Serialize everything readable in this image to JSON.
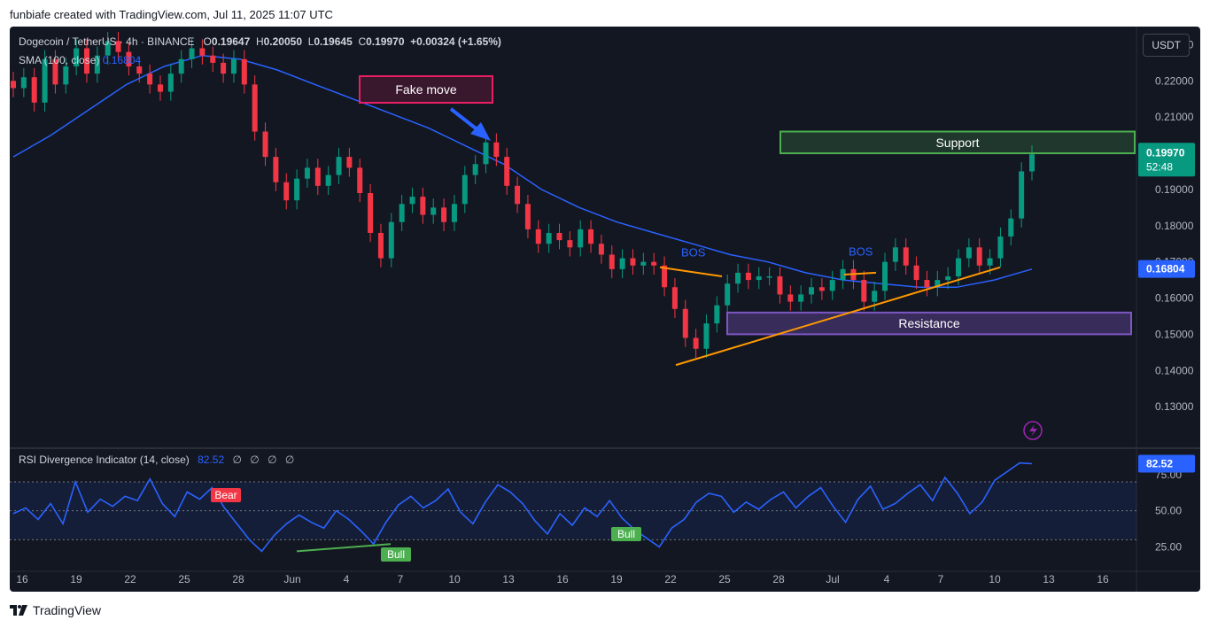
{
  "header": {
    "created_line": "funbiafe created with TradingView.com, Jul 11, 2025 11:07 UTC"
  },
  "symbol": {
    "name": "Dogecoin / TetherUS · 4h · BINANCE",
    "o_label": "O",
    "o_value": "0.19647",
    "h_label": "H",
    "h_value": "0.20050",
    "l_label": "L",
    "l_value": "0.19645",
    "c_label": "C",
    "c_value": "0.19970",
    "change": "+0.00324 (+1.65%)"
  },
  "sma": {
    "label": "SMA (100, close)",
    "value": "0.16804"
  },
  "currency_button": "USDT",
  "price_tags": {
    "last": "0.19970",
    "countdown": "52:48",
    "sma": "0.16804"
  },
  "rsi": {
    "label": "RSI Divergence Indicator (14, close)",
    "value": "82.52",
    "extras": [
      "∅",
      "∅",
      "∅",
      "∅"
    ],
    "tag": "82.52"
  },
  "annotations": {
    "fake_move": "Fake move",
    "support": "Support",
    "resistance": "Resistance",
    "bos1": "BOS",
    "bos2": "BOS"
  },
  "divergence_labels": {
    "bear": "Bear",
    "bull1": "Bull",
    "bull2": "Bull"
  },
  "brand": "TradingView",
  "colors": {
    "up": "#089981",
    "down": "#f23645",
    "sma": "#2962ff",
    "rsi": "#2962ff",
    "support": "#4caf50",
    "resistance": "#7e57c2",
    "trendline": "#ff9800",
    "fake_move": "#e91e63",
    "bg": "#131722"
  },
  "chart_data": [
    {
      "type": "candlestick",
      "title": "Dogecoin / TetherUS · 4h · BINANCE",
      "y_ticks": [
        0.13,
        0.14,
        0.15,
        0.16,
        0.17,
        0.18,
        0.19,
        0.2,
        0.21,
        0.22,
        0.23
      ],
      "ylim": [
        0.12,
        0.235
      ],
      "x_ticks": [
        "16",
        "19",
        "22",
        "25",
        "28",
        "Jun",
        "4",
        "7",
        "10",
        "13",
        "16",
        "19",
        "22",
        "25",
        "28",
        "Jul",
        "4",
        "7",
        "10",
        "13",
        "16"
      ],
      "close_path": [
        [
          0.218,
          0.221,
          0.214,
          0.226,
          0.219,
          0.224,
          0.229,
          0.222,
          0.227,
          0.231,
          0.228,
          0.224
        ],
        [
          0.222,
          0.219,
          0.217,
          0.222,
          0.226,
          0.229,
          0.227,
          0.225,
          0.222,
          0.226,
          0.219,
          0.206
        ],
        [
          0.199,
          0.192,
          0.187,
          0.193,
          0.196,
          0.191,
          0.194,
          0.199,
          0.196,
          0.189,
          0.178,
          0.171
        ],
        [
          0.181,
          0.186,
          0.188,
          0.183,
          0.185,
          0.181,
          0.186,
          0.194,
          0.197,
          0.203,
          0.199,
          0.191
        ],
        [
          0.186,
          0.179,
          0.175,
          0.178,
          0.176,
          0.174,
          0.179,
          0.175,
          0.172,
          0.168,
          0.171,
          0.169
        ],
        [
          0.17,
          0.169,
          0.163,
          0.157,
          0.149,
          0.146,
          0.153,
          0.158,
          0.164,
          0.167,
          0.165,
          0.166
        ],
        [
          0.166,
          0.161,
          0.159,
          0.161,
          0.163,
          0.162,
          0.165,
          0.168,
          0.165,
          0.159,
          0.162,
          0.17
        ],
        [
          0.174,
          0.169,
          0.165,
          0.163,
          0.165,
          0.166,
          0.171,
          0.174,
          0.169,
          0.171,
          0.177,
          0.182
        ],
        [
          0.195,
          0.1997
        ]
      ],
      "sma_100": [
        0.199,
        0.205,
        0.212,
        0.219,
        0.224,
        0.227,
        0.226,
        0.223,
        0.219,
        0.215,
        0.211,
        0.207,
        0.202,
        0.197,
        0.19,
        0.185,
        0.181,
        0.178,
        0.175,
        0.172,
        0.17,
        0.167,
        0.165,
        0.164,
        0.163,
        0.163,
        0.165,
        0.168
      ],
      "series": [
        {
          "name": "SMA (100, close)",
          "last": 0.16804
        }
      ],
      "levels": {
        "support_zone": [
          0.2,
          0.206
        ],
        "resistance_zone": [
          0.15,
          0.156
        ]
      },
      "last_price": 0.1997
    },
    {
      "type": "line",
      "title": "RSI Divergence Indicator (14, close)",
      "y_ticks": [
        25,
        50,
        75
      ],
      "ylim": [
        10,
        92
      ],
      "band": [
        30,
        70
      ],
      "values": [
        48,
        52,
        44,
        55,
        41,
        70,
        49,
        58,
        53,
        60,
        57,
        72,
        55,
        46,
        63,
        58,
        66,
        52,
        41,
        30,
        22,
        33,
        41,
        47,
        42,
        38,
        50,
        44,
        36,
        27,
        42,
        54,
        60,
        52,
        57,
        65,
        49,
        41,
        56,
        68,
        63,
        55,
        43,
        34,
        48,
        40,
        52,
        46,
        57,
        45,
        37,
        31,
        25,
        38,
        44,
        56,
        62,
        60,
        49,
        56,
        51,
        58,
        63,
        52,
        60,
        66,
        53,
        42,
        58,
        67,
        51,
        55,
        62,
        68,
        57,
        73,
        62,
        48,
        56,
        71,
        77,
        83,
        82.5
      ],
      "last": 82.52
    }
  ]
}
